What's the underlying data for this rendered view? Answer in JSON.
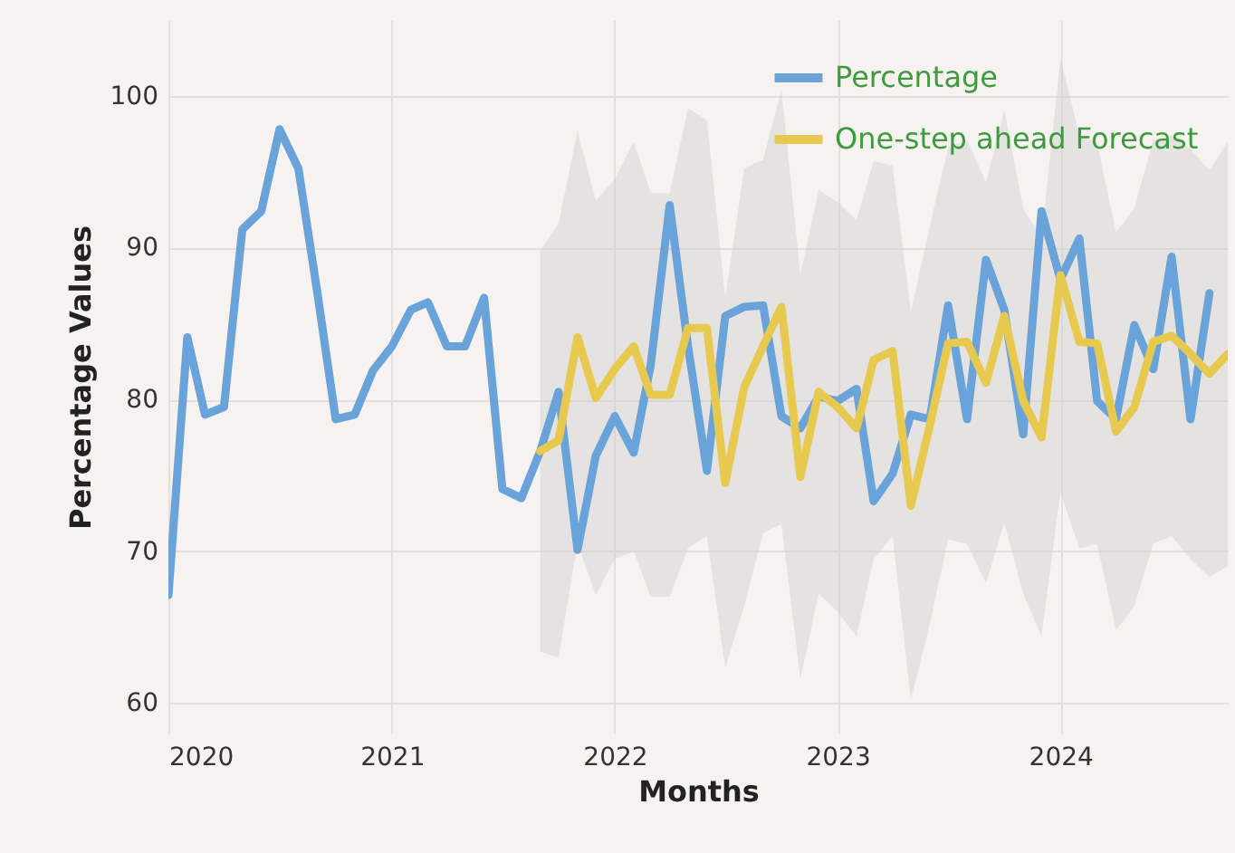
{
  "chart_data": {
    "type": "line",
    "xlabel": "Months",
    "ylabel": "Percentage Values",
    "x": [
      "2020-01",
      "2020-02",
      "2020-03",
      "2020-04",
      "2020-05",
      "2020-06",
      "2020-07",
      "2020-08",
      "2020-09",
      "2020-10",
      "2020-11",
      "2020-12",
      "2021-01",
      "2021-02",
      "2021-03",
      "2021-04",
      "2021-05",
      "2021-06",
      "2021-07",
      "2021-08",
      "2021-09",
      "2021-10",
      "2021-11",
      "2021-12",
      "2022-01",
      "2022-02",
      "2022-03",
      "2022-04",
      "2022-05",
      "2022-06",
      "2022-07",
      "2022-08",
      "2022-09",
      "2022-10",
      "2022-11",
      "2022-12",
      "2023-01",
      "2023-02",
      "2023-03",
      "2023-04",
      "2023-05",
      "2023-06",
      "2023-07",
      "2023-08",
      "2023-09",
      "2023-10",
      "2023-11",
      "2023-12",
      "2024-01",
      "2024-02",
      "2024-03",
      "2024-04",
      "2024-05",
      "2024-06",
      "2024-07",
      "2024-08",
      "2024-09",
      "2024-10"
    ],
    "series": [
      {
        "name": "Percentage",
        "color": "#6aa3d9",
        "values": [
          67.1,
          84.1,
          79.0,
          79.5,
          91.2,
          92.4,
          97.8,
          95.2,
          87.0,
          78.7,
          79.0,
          81.9,
          83.5,
          85.9,
          86.4,
          83.5,
          83.5,
          86.7,
          74.1,
          73.5,
          76.6,
          80.5,
          70.1,
          76.3,
          78.9,
          76.5,
          82.3,
          92.8,
          83.5,
          75.3,
          85.5,
          86.1,
          86.2,
          78.9,
          78.1,
          80.2,
          79.9,
          80.7,
          73.3,
          75.1,
          79.0,
          78.7,
          86.2,
          78.7,
          89.2,
          85.9,
          77.7,
          92.4,
          87.9,
          90.6,
          79.9,
          78.7,
          84.9,
          82.0,
          89.4,
          78.7,
          87.0,
          null
        ]
      },
      {
        "name": "One-step ahead Forecast",
        "color": "#e8c94f",
        "values": [
          null,
          null,
          null,
          null,
          null,
          null,
          null,
          null,
          null,
          null,
          null,
          null,
          null,
          null,
          null,
          null,
          null,
          null,
          null,
          null,
          76.6,
          77.3,
          84.1,
          80.1,
          82.0,
          83.5,
          80.3,
          80.3,
          84.7,
          84.7,
          74.5,
          80.8,
          83.5,
          86.1,
          74.9,
          80.5,
          79.5,
          78.1,
          82.6,
          83.2,
          73.0,
          78.3,
          83.7,
          83.8,
          81.1,
          85.5,
          79.9,
          77.5,
          88.2,
          83.8,
          83.7,
          77.9,
          79.5,
          83.8,
          84.2,
          83.0,
          81.7,
          83.0
        ],
        "lower": [
          null,
          null,
          null,
          null,
          null,
          null,
          null,
          null,
          null,
          null,
          null,
          null,
          null,
          null,
          null,
          null,
          null,
          null,
          null,
          null,
          63.4,
          63.0,
          70.5,
          67.1,
          69.5,
          70.0,
          67.0,
          67.0,
          70.2,
          71.0,
          62.3,
          66.4,
          71.2,
          71.8,
          61.6,
          67.2,
          66.0,
          64.4,
          69.5,
          71.0,
          60.2,
          65.2,
          70.8,
          70.5,
          67.9,
          71.9,
          67.2,
          64.4,
          73.9,
          70.2,
          70.5,
          64.8,
          66.4,
          70.5,
          71.0,
          69.5,
          68.3,
          69.0
        ],
        "upper": [
          null,
          null,
          null,
          null,
          null,
          null,
          null,
          null,
          null,
          null,
          null,
          null,
          null,
          null,
          null,
          null,
          null,
          null,
          null,
          null,
          89.8,
          91.6,
          97.7,
          93.1,
          94.5,
          97.0,
          93.6,
          93.6,
          99.2,
          98.4,
          86.7,
          95.2,
          95.8,
          100.4,
          88.2,
          93.8,
          93.0,
          91.8,
          95.7,
          95.4,
          85.8,
          91.4,
          96.6,
          97.1,
          94.3,
          99.1,
          92.6,
          90.6,
          102.5,
          97.4,
          96.9,
          91.0,
          92.6,
          97.1,
          97.4,
          96.5,
          95.1,
          97.0
        ]
      }
    ],
    "xlim": [
      "2020-01",
      "2024-10"
    ],
    "xticks": [
      {
        "value": "2020-01",
        "label": "2020"
      },
      {
        "value": "2021-01",
        "label": "2021"
      },
      {
        "value": "2022-01",
        "label": "2022"
      },
      {
        "value": "2023-01",
        "label": "2023"
      },
      {
        "value": "2024-01",
        "label": "2024"
      }
    ],
    "ylim": [
      58,
      105
    ],
    "yticks": [
      60,
      70,
      80,
      90,
      100
    ],
    "grid": true,
    "legend": "top right",
    "line_style": "solid",
    "marker": "none"
  }
}
